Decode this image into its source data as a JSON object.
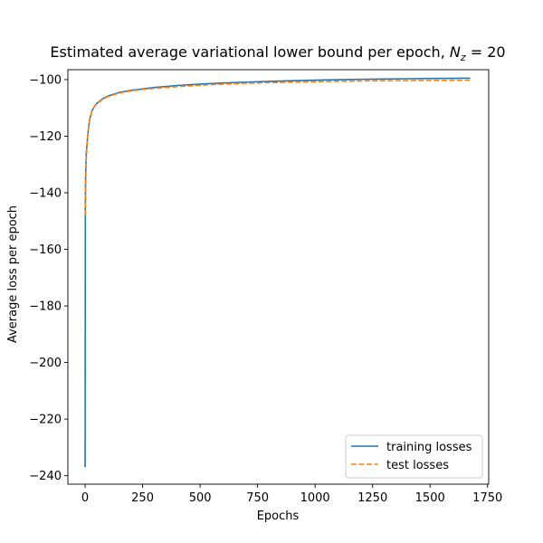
{
  "chart_data": {
    "type": "line",
    "title": "Estimated average variational lower bound per epoch, ",
    "title_math": {
      "base": "N",
      "subscript": "z",
      "suffix": " = 20"
    },
    "xlabel": "Epochs",
    "ylabel": "Average loss per epoch",
    "xlim": [
      -75,
      1755
    ],
    "ylim": [
      -243,
      -96.5
    ],
    "xticks": [
      0,
      250,
      500,
      750,
      1000,
      1250,
      1500,
      1750
    ],
    "yticks": [
      -240,
      -220,
      -200,
      -180,
      -160,
      -140,
      -120,
      -100
    ],
    "grid": false,
    "legend_position": "lower right",
    "series": [
      {
        "name": "training losses",
        "color": "#1f77b4",
        "style": "solid",
        "x": [
          0,
          1,
          2,
          5,
          10,
          15,
          20,
          30,
          40,
          50,
          75,
          100,
          150,
          200,
          250,
          300,
          400,
          500,
          600,
          700,
          800,
          900,
          1000,
          1100,
          1200,
          1300,
          1400,
          1500,
          1600,
          1675
        ],
        "y": [
          -237,
          -146,
          -135,
          -126,
          -121,
          -117,
          -114,
          -111,
          -109.5,
          -108.5,
          -106.8,
          -105.8,
          -104.5,
          -103.8,
          -103.3,
          -102.8,
          -102.1,
          -101.6,
          -101.2,
          -100.9,
          -100.65,
          -100.4,
          -100.2,
          -100.05,
          -99.9,
          -99.8,
          -99.7,
          -99.6,
          -99.55,
          -99.5
        ]
      },
      {
        "name": "test losses",
        "color": "#ff7f0e",
        "style": "dashed",
        "x": [
          0,
          2,
          5,
          10,
          15,
          20,
          30,
          40,
          50,
          75,
          100,
          150,
          200,
          250,
          300,
          400,
          500,
          600,
          700,
          800,
          900,
          1000,
          1100,
          1200,
          1300,
          1400,
          1500,
          1600,
          1675
        ],
        "y": [
          -148,
          -138,
          -128,
          -121,
          -117,
          -114,
          -111,
          -109.5,
          -108.7,
          -107,
          -106,
          -104.7,
          -104,
          -103.5,
          -103.1,
          -102.5,
          -102,
          -101.6,
          -101.3,
          -101.1,
          -100.9,
          -100.75,
          -100.6,
          -100.5,
          -100.4,
          -100.35,
          -100.3,
          -100.25,
          -100.2
        ]
      }
    ]
  }
}
